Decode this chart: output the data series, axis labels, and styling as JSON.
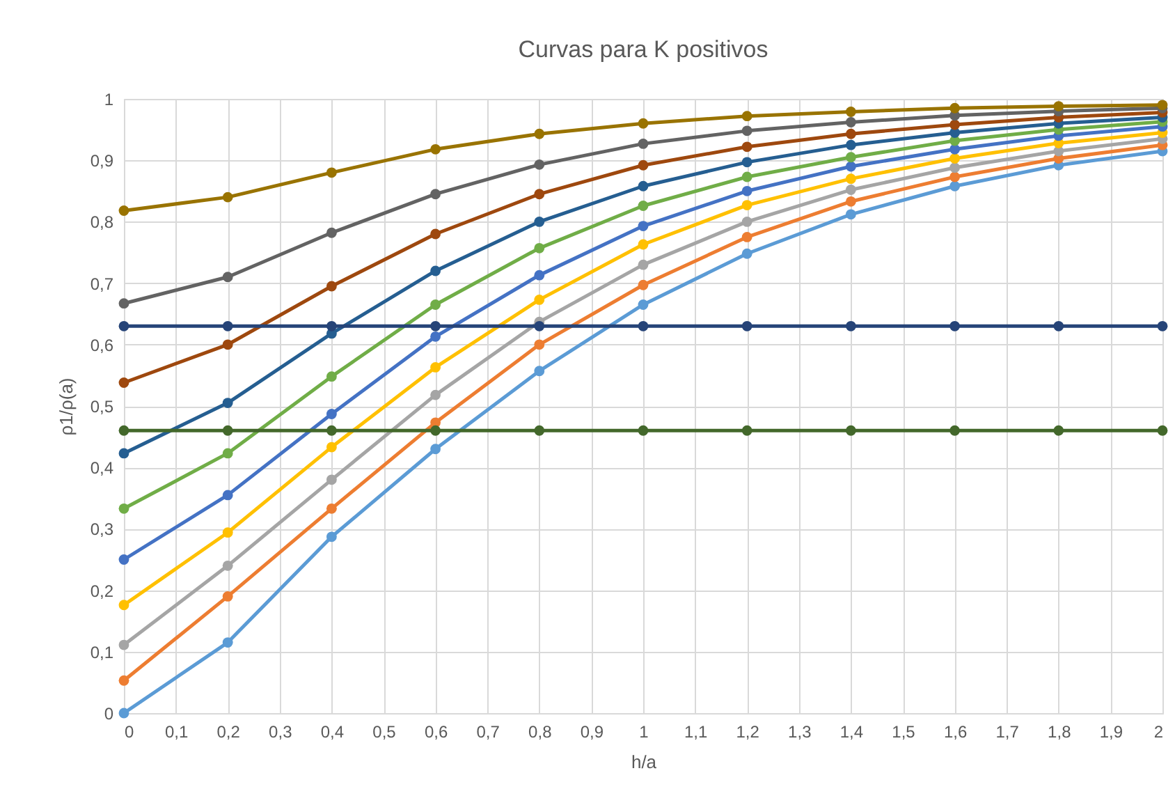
{
  "chart_data": {
    "type": "line",
    "title": "Curvas para K positivos",
    "xlabel": "h/a",
    "ylabel": "ρ1/ρ(a)",
    "x": [
      0,
      0.2,
      0.4,
      0.6,
      0.8,
      1,
      1.2,
      1.4,
      1.6,
      1.8,
      2
    ],
    "series": [
      {
        "color": "#5b9bd5",
        "values": [
          0,
          0.115,
          0.287,
          0.43,
          0.557,
          0.665,
          0.748,
          0.812,
          0.858,
          0.892,
          0.915
        ]
      },
      {
        "color": "#ed7d31",
        "values": [
          0.053,
          0.19,
          0.333,
          0.473,
          0.6,
          0.697,
          0.775,
          0.833,
          0.873,
          0.903,
          0.925
        ]
      },
      {
        "color": "#a5a5a5",
        "values": [
          0.111,
          0.24,
          0.38,
          0.518,
          0.637,
          0.73,
          0.8,
          0.852,
          0.888,
          0.915,
          0.935
        ]
      },
      {
        "color": "#ffc000",
        "values": [
          0.176,
          0.294,
          0.433,
          0.563,
          0.673,
          0.763,
          0.827,
          0.87,
          0.903,
          0.928,
          0.945
        ]
      },
      {
        "color": "#4472c4",
        "values": [
          0.25,
          0.355,
          0.487,
          0.613,
          0.713,
          0.793,
          0.85,
          0.89,
          0.918,
          0.94,
          0.955
        ]
      },
      {
        "color": "#70ad47",
        "values": [
          0.333,
          0.423,
          0.548,
          0.665,
          0.757,
          0.826,
          0.873,
          0.905,
          0.932,
          0.95,
          0.963
        ]
      },
      {
        "color": "#255e91",
        "values": [
          0.423,
          0.505,
          0.618,
          0.72,
          0.8,
          0.858,
          0.897,
          0.925,
          0.945,
          0.96,
          0.97
        ]
      },
      {
        "color": "#9e480e",
        "values": [
          0.538,
          0.6,
          0.695,
          0.78,
          0.845,
          0.892,
          0.922,
          0.943,
          0.958,
          0.97,
          0.978
        ]
      },
      {
        "color": "#636363",
        "values": [
          0.667,
          0.71,
          0.782,
          0.845,
          0.893,
          0.927,
          0.948,
          0.962,
          0.973,
          0.98,
          0.985
        ]
      },
      {
        "color": "#997300",
        "values": [
          0.818,
          0.84,
          0.88,
          0.918,
          0.943,
          0.96,
          0.972,
          0.979,
          0.985,
          0.988,
          0.99
        ]
      },
      {
        "color": "#264478",
        "values": [
          0.63,
          0.63,
          0.63,
          0.63,
          0.63,
          0.63,
          0.63,
          0.63,
          0.63,
          0.63,
          0.63
        ]
      },
      {
        "color": "#43682b",
        "values": [
          0.46,
          0.46,
          0.46,
          0.46,
          0.46,
          0.46,
          0.46,
          0.46,
          0.46,
          0.46,
          0.46
        ]
      }
    ],
    "xlim": [
      0,
      2
    ],
    "ylim": [
      0,
      1
    ],
    "xticks": [
      0,
      {
        "value": 0.1,
        "label": "0,1"
      },
      {
        "value": 0.2,
        "label": "0,2"
      },
      {
        "value": 0.3,
        "label": "0,3"
      },
      {
        "value": 0.4,
        "label": "0,4"
      },
      {
        "value": 0.5,
        "label": "0,5"
      },
      {
        "value": 0.6,
        "label": "0,6"
      },
      {
        "value": 0.7,
        "label": "0,7"
      },
      {
        "value": 0.8,
        "label": "0,8"
      },
      {
        "value": 0.9,
        "label": "0,9"
      },
      1,
      {
        "value": 1.1,
        "label": "1,1"
      },
      {
        "value": 1.2,
        "label": "1,2"
      },
      {
        "value": 1.3,
        "label": "1,3"
      },
      {
        "value": 1.4,
        "label": "1,4"
      },
      {
        "value": 1.5,
        "label": "1,5"
      },
      {
        "value": 1.6,
        "label": "1,6"
      },
      {
        "value": 1.7,
        "label": "1,7"
      },
      {
        "value": 1.8,
        "label": "1,8"
      },
      {
        "value": 1.9,
        "label": "1,9"
      },
      2
    ],
    "yticks": [
      0,
      {
        "value": 0.1,
        "label": "0,1"
      },
      {
        "value": 0.2,
        "label": "0,2"
      },
      {
        "value": 0.3,
        "label": "0,3"
      },
      {
        "value": 0.4,
        "label": "0,4"
      },
      {
        "value": 0.5,
        "label": "0,5"
      },
      {
        "value": 0.6,
        "label": "0,6"
      },
      {
        "value": 0.7,
        "label": "0,7"
      },
      {
        "value": 0.8,
        "label": "0,8"
      },
      {
        "value": 0.9,
        "label": "0,9"
      },
      1
    ],
    "grid": true,
    "marker": "circle",
    "line_style": "solid"
  }
}
